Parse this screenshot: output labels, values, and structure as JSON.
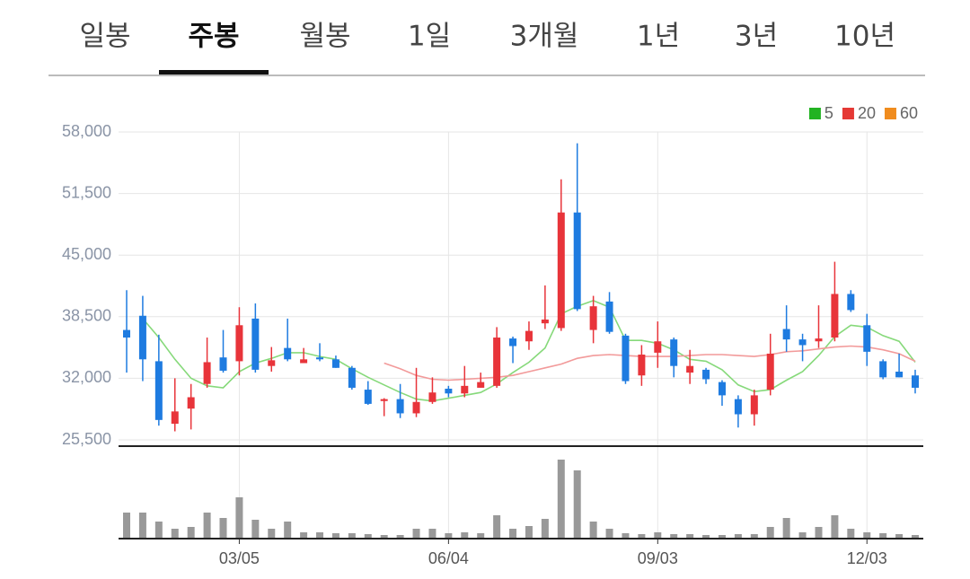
{
  "tabs": [
    "일봉",
    "주봉",
    "월봉",
    "1일",
    "3개월",
    "1년",
    "3년",
    "10년"
  ],
  "active_tab": 1,
  "chart_data": {
    "type": "candlestick",
    "categories": [
      null,
      null,
      null,
      null,
      null,
      null,
      null,
      "03/05",
      null,
      null,
      null,
      null,
      null,
      null,
      null,
      null,
      null,
      null,
      null,
      null,
      "06/04",
      null,
      null,
      null,
      null,
      null,
      null,
      null,
      null,
      null,
      null,
      null,
      null,
      "09/03",
      null,
      null,
      null,
      null,
      null,
      null,
      null,
      null,
      null,
      null,
      null,
      null,
      "12/03",
      null,
      null,
      null
    ],
    "open": [
      37100,
      38600,
      33800,
      27200,
      28800,
      31400,
      34200,
      33800,
      38300,
      33300,
      35200,
      33600,
      34200,
      34000,
      33100,
      30800,
      29600,
      29800,
      28300,
      29500,
      30900,
      30400,
      31000,
      31200,
      36200,
      35900,
      37800,
      37300,
      49500,
      37100,
      40100,
      36500,
      32300,
      34700,
      36100,
      32600,
      32900,
      31600,
      29800,
      28200,
      30800,
      37200,
      36100,
      35900,
      36300,
      40900,
      37600,
      33800,
      32700,
      32300
    ],
    "high": [
      41300,
      40700,
      36600,
      32000,
      31400,
      36300,
      37100,
      39500,
      39900,
      35300,
      38300,
      35200,
      35700,
      34400,
      33300,
      31700,
      29900,
      31400,
      33100,
      32100,
      31200,
      33300,
      32600,
      37400,
      36400,
      38000,
      41800,
      53000,
      56800,
      40700,
      41100,
      36700,
      35500,
      38000,
      36300,
      35000,
      33100,
      31800,
      30200,
      30800,
      36700,
      39700,
      36700,
      39700,
      44300,
      41300,
      38800,
      34000,
      34600,
      32900
    ],
    "low": [
      32600,
      31700,
      27000,
      26400,
      26600,
      31000,
      32600,
      32300,
      32600,
      32700,
      33800,
      33600,
      33800,
      33100,
      30800,
      29200,
      28000,
      27800,
      27900,
      29300,
      30000,
      30000,
      31000,
      31000,
      33600,
      35000,
      37200,
      37000,
      39100,
      35700,
      36700,
      31400,
      31200,
      33100,
      32100,
      31400,
      31400,
      29100,
      26800,
      27000,
      30200,
      34800,
      33800,
      35200,
      35900,
      39000,
      33300,
      31900,
      32100,
      30400
    ],
    "close": [
      36300,
      34000,
      27600,
      28500,
      30000,
      33700,
      32800,
      37600,
      32900,
      33900,
      34000,
      34000,
      34000,
      33100,
      31000,
      29300,
      29800,
      28300,
      29500,
      30500,
      30400,
      31200,
      31600,
      36300,
      35400,
      37000,
      38200,
      49500,
      39300,
      39600,
      36900,
      31700,
      34500,
      35900,
      33300,
      33300,
      31900,
      30200,
      28200,
      30200,
      34600,
      36100,
      35500,
      36200,
      40900,
      39200,
      34800,
      32100,
      32100,
      31000
    ],
    "volume": [
      28,
      28,
      18,
      10,
      12,
      28,
      22,
      45,
      20,
      10,
      18,
      6,
      6,
      5,
      5,
      4,
      3,
      3,
      10,
      10,
      5,
      6,
      5,
      25,
      10,
      13,
      21,
      87,
      75,
      18,
      10,
      5,
      4,
      6,
      4,
      4,
      3,
      3,
      4,
      4,
      12,
      22,
      6,
      12,
      25,
      10,
      6,
      5,
      4,
      3
    ],
    "up_color": "#e8343a",
    "down_color": "#1e7be0",
    "volume_color": "#999999",
    "ylim": [
      25500,
      58000
    ],
    "yticks": [
      {
        "value": 58000,
        "label": "58,000"
      },
      {
        "value": 51500,
        "label": "51,500"
      },
      {
        "value": 45000,
        "label": "45,000"
      },
      {
        "value": 38500,
        "label": "38,500"
      },
      {
        "value": 32000,
        "label": "32,000"
      },
      {
        "value": 25500,
        "label": "25,500"
      }
    ],
    "grid": true,
    "legend": "top-right",
    "moving_averages": [
      {
        "name": "5",
        "color": "#22b322",
        "line_color": "#86d97a",
        "values": [
          null,
          38300,
          36300,
          34000,
          32000,
          31200,
          31000,
          32700,
          33600,
          34100,
          34700,
          34700,
          34300,
          34000,
          33000,
          32100,
          31300,
          30500,
          29800,
          29600,
          29900,
          30200,
          30500,
          31400,
          32600,
          33700,
          35200,
          38800,
          39600,
          40200,
          39500,
          36000,
          36000,
          35700,
          35000,
          34000,
          33800,
          32900,
          31300,
          30600,
          30800,
          31800,
          32700,
          34400,
          36400,
          37600,
          37400,
          36500,
          35900,
          33700
        ]
      },
      {
        "name": "20",
        "color": "#e53935",
        "line_color": "#f29a9a",
        "values": [
          null,
          null,
          null,
          null,
          null,
          null,
          null,
          null,
          null,
          null,
          null,
          null,
          null,
          null,
          null,
          null,
          33600,
          33000,
          32300,
          31900,
          31800,
          31900,
          32000,
          32100,
          32300,
          32700,
          33100,
          33500,
          34100,
          34400,
          34500,
          34400,
          34300,
          34300,
          34300,
          34400,
          34500,
          34500,
          34400,
          34300,
          34500,
          34800,
          34900,
          35100,
          35300,
          35400,
          35300,
          35000,
          34600,
          33800
        ]
      },
      {
        "name": "60",
        "color": "#f08c1e",
        "line_color": "#f08c1e",
        "values": [
          null,
          null,
          null,
          null,
          null,
          null,
          null,
          null,
          null,
          null,
          null,
          null,
          null,
          null,
          null,
          null,
          null,
          null,
          null,
          null,
          null,
          null,
          null,
          null,
          null,
          null,
          null,
          null,
          null,
          null,
          null,
          null,
          null,
          null,
          null,
          null,
          null,
          null,
          null,
          null,
          null,
          null,
          null,
          null,
          null,
          null,
          null,
          null,
          null,
          null
        ]
      }
    ]
  }
}
